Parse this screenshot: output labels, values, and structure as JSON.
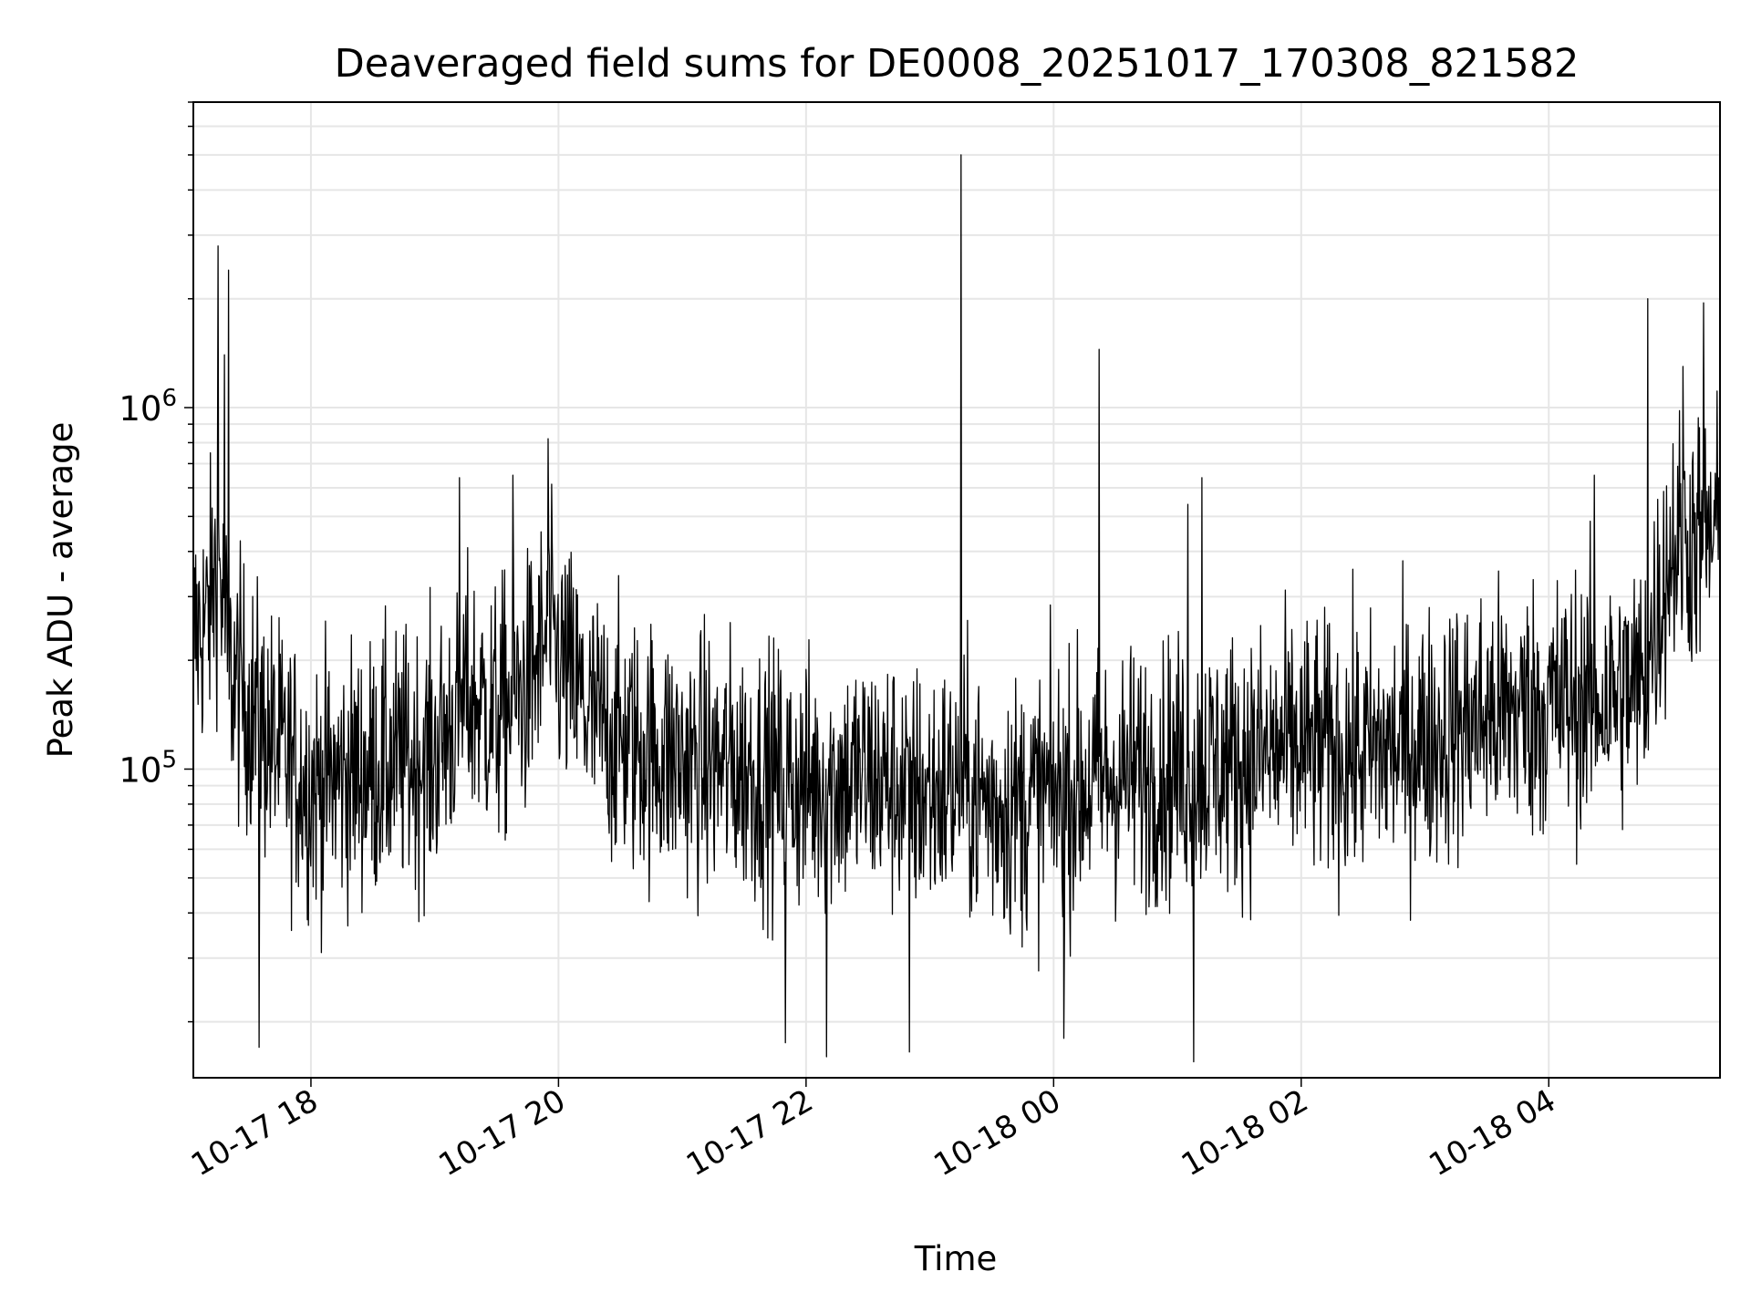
{
  "chart_data": {
    "type": "line",
    "title": "Deaveraged field sums for DE0008_20251017_170308_821582",
    "xlabel": "Time",
    "ylabel": "Peak ADU - average",
    "yscale": "log",
    "ylim": [
      14000,
      7000000
    ],
    "xlim": [
      "2025-10-17 17:03",
      "2025-10-18 05:23"
    ],
    "grid": true,
    "line_color": "#000000",
    "x_ticks": [
      {
        "value": "2025-10-17 18:00",
        "label": "10-17 18"
      },
      {
        "value": "2025-10-17 20:00",
        "label": "10-17 20"
      },
      {
        "value": "2025-10-17 22:00",
        "label": "10-17 22"
      },
      {
        "value": "2025-10-18 00:00",
        "label": "10-18 00"
      },
      {
        "value": "2025-10-18 02:00",
        "label": "10-18 02"
      },
      {
        "value": "2025-10-18 04:00",
        "label": "10-18 04"
      }
    ],
    "y_ticks": [
      {
        "value": 100000,
        "base": "10",
        "exp": "5"
      },
      {
        "value": 1000000,
        "base": "10",
        "exp": "6"
      }
    ],
    "series": [
      {
        "x": [
          "2025-10-17 17:03",
          "2025-10-17 17:10",
          "2025-10-17 17:15",
          "2025-10-17 17:20",
          "2025-10-17 17:30",
          "2025-10-17 17:45",
          "2025-10-17 18:00",
          "2025-10-17 18:30",
          "2025-10-17 19:00",
          "2025-10-17 19:15",
          "2025-10-17 19:30",
          "2025-10-17 19:45",
          "2025-10-17 19:55",
          "2025-10-17 20:15",
          "2025-10-17 20:30",
          "2025-10-17 21:00",
          "2025-10-17 21:30",
          "2025-10-17 22:00",
          "2025-10-17 22:30",
          "2025-10-17 23:00",
          "2025-10-17 23:15",
          "2025-10-17 23:30",
          "2025-10-17 23:45",
          "2025-10-18 00:00",
          "2025-10-18 00:30",
          "2025-10-18 01:00",
          "2025-10-18 01:30",
          "2025-10-18 02:00",
          "2025-10-18 02:30",
          "2025-10-18 03:00",
          "2025-10-18 03:30",
          "2025-10-18 04:00",
          "2025-10-18 04:30",
          "2025-10-18 04:45",
          "2025-10-18 05:00",
          "2025-10-18 05:23"
        ],
        "y": [
          230000,
          260000,
          400000,
          190000,
          150000,
          110000,
          90000,
          100000,
          110000,
          160000,
          140000,
          170000,
          230000,
          140000,
          120000,
          105000,
          100000,
          90000,
          95000,
          85000,
          90000,
          80000,
          80000,
          85000,
          95000,
          100000,
          105000,
          115000,
          110000,
          120000,
          140000,
          150000,
          160000,
          170000,
          420000,
          450000
        ]
      }
    ],
    "spikes": [
      {
        "x": "2025-10-17 17:15",
        "y": 2800000
      },
      {
        "x": "2025-10-17 17:20",
        "y": 2400000
      },
      {
        "x": "2025-10-17 17:18",
        "y": 1400000
      },
      {
        "x": "2025-10-17 19:55",
        "y": 820000
      },
      {
        "x": "2025-10-17 19:38",
        "y": 650000
      },
      {
        "x": "2025-10-17 19:12",
        "y": 640000
      },
      {
        "x": "2025-10-17 23:15",
        "y": 5000000
      },
      {
        "x": "2025-10-18 00:22",
        "y": 1450000
      },
      {
        "x": "2025-10-18 01:12",
        "y": 640000
      },
      {
        "x": "2025-10-18 01:05",
        "y": 540000
      },
      {
        "x": "2025-10-18 04:48",
        "y": 2000000
      },
      {
        "x": "2025-10-18 05:15",
        "y": 1950000
      },
      {
        "x": "2025-10-18 05:05",
        "y": 1300000
      },
      {
        "x": "2025-10-18 04:22",
        "y": 650000
      },
      {
        "x": "2025-10-17 17:35",
        "y": 17000
      },
      {
        "x": "2025-10-17 22:10",
        "y": 16000
      },
      {
        "x": "2025-10-17 22:50",
        "y": 16500
      },
      {
        "x": "2025-10-18 01:08",
        "y": 15500
      },
      {
        "x": "2025-10-18 00:05",
        "y": 18000
      },
      {
        "x": "2025-10-17 21:50",
        "y": 17500
      }
    ],
    "noise_amplitude": 0.95
  }
}
